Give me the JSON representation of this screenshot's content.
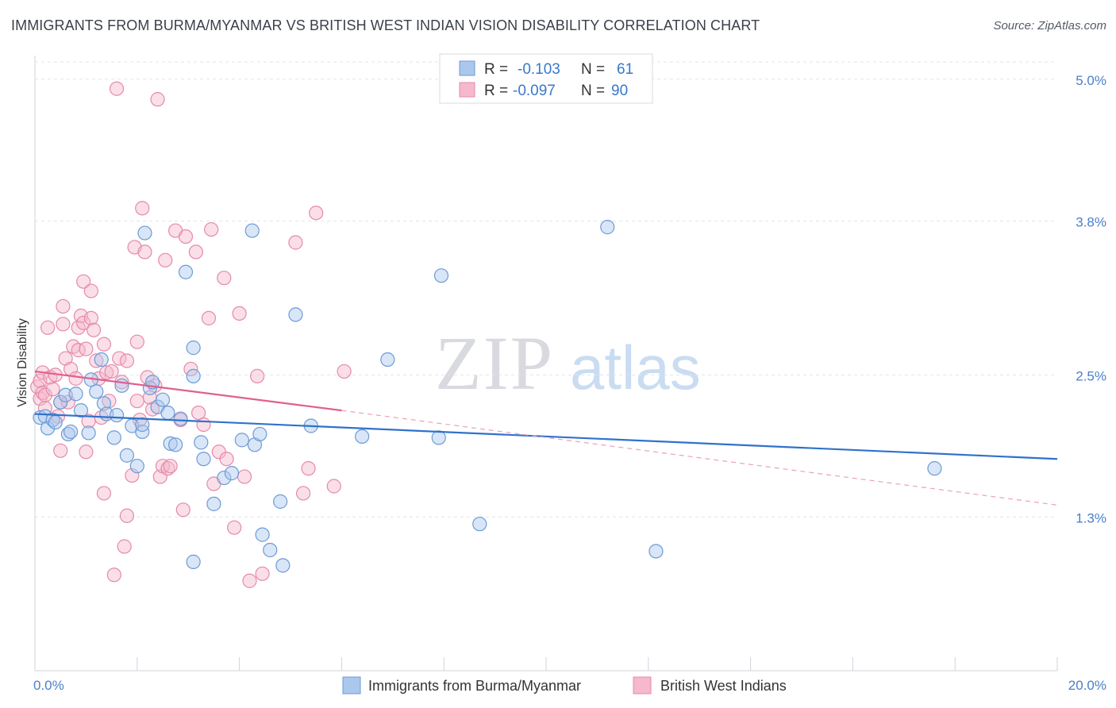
{
  "title": "IMMIGRANTS FROM BURMA/MYANMAR VS BRITISH WEST INDIAN VISION DISABILITY CORRELATION CHART",
  "source": "Source: ZipAtlas.com",
  "watermark": {
    "zip": "ZIP",
    "atlas": "atlas"
  },
  "colors": {
    "blue": "#4a86d4",
    "blue_fill": "#aac8ee",
    "pink": "#e86e98",
    "pink_fill": "#f5b8cc",
    "tick_text": "#4a7fc8"
  },
  "legend": {
    "rows": [
      {
        "r_label": "R = ",
        "r_value": "-0.103",
        "n_label": "N = ",
        "n_value": "61"
      },
      {
        "r_label": "R = ",
        "r_value": "-0.097",
        "n_label": "N = ",
        "n_value": "90"
      }
    ]
  },
  "chart_data": {
    "type": "scatter",
    "ylabel": "Vision Disability",
    "xlabel": "",
    "xlim": [
      0,
      20
    ],
    "ylim": [
      0,
      5.2
    ],
    "x_tick_labels": [
      "0.0%",
      "20.0%"
    ],
    "y_ticks": [
      {
        "value": 1.3,
        "label": "1.3%"
      },
      {
        "value": 2.5,
        "label": "2.5%"
      },
      {
        "value": 3.8,
        "label": "3.8%"
      },
      {
        "value": 5.0,
        "label": "5.0%"
      }
    ],
    "grid": "horizontal dashed",
    "legend_position": "top-center",
    "series": [
      {
        "name": "Immigrants from Burma/Myanmar",
        "color": "blue",
        "trend": {
          "x": [
            0,
            20
          ],
          "y": [
            2.17,
            1.79
          ]
        },
        "points": [
          [
            0.1,
            2.14
          ],
          [
            0.2,
            2.15
          ],
          [
            0.25,
            2.05
          ],
          [
            0.35,
            2.12
          ],
          [
            0.4,
            2.1
          ],
          [
            0.5,
            2.27
          ],
          [
            0.6,
            2.33
          ],
          [
            0.65,
            2.0
          ],
          [
            0.7,
            2.02
          ],
          [
            0.8,
            2.34
          ],
          [
            0.9,
            2.2
          ],
          [
            1.05,
            2.01
          ],
          [
            1.1,
            2.46
          ],
          [
            1.2,
            2.36
          ],
          [
            1.3,
            2.63
          ],
          [
            1.35,
            2.26
          ],
          [
            1.4,
            2.17
          ],
          [
            1.55,
            1.97
          ],
          [
            1.6,
            2.16
          ],
          [
            1.7,
            2.41
          ],
          [
            1.8,
            1.82
          ],
          [
            1.9,
            2.07
          ],
          [
            2.0,
            1.73
          ],
          [
            2.1,
            2.02
          ],
          [
            2.1,
            2.08
          ],
          [
            2.15,
            3.7
          ],
          [
            2.25,
            2.39
          ],
          [
            2.3,
            2.44
          ],
          [
            2.4,
            2.23
          ],
          [
            2.5,
            2.29
          ],
          [
            2.6,
            2.18
          ],
          [
            2.65,
            1.92
          ],
          [
            2.75,
            1.91
          ],
          [
            2.85,
            2.13
          ],
          [
            2.95,
            3.37
          ],
          [
            3.1,
            2.73
          ],
          [
            3.1,
            2.49
          ],
          [
            3.25,
            1.93
          ],
          [
            3.3,
            1.79
          ],
          [
            3.1,
            0.92
          ],
          [
            3.5,
            1.41
          ],
          [
            3.7,
            1.63
          ],
          [
            3.85,
            1.67
          ],
          [
            4.05,
            1.95
          ],
          [
            4.25,
            3.72
          ],
          [
            4.3,
            1.91
          ],
          [
            4.4,
            2.0
          ],
          [
            4.45,
            1.15
          ],
          [
            4.6,
            1.02
          ],
          [
            4.8,
            1.43
          ],
          [
            4.85,
            0.89
          ],
          [
            5.1,
            3.01
          ],
          [
            5.4,
            2.07
          ],
          [
            6.4,
            1.98
          ],
          [
            6.9,
            2.63
          ],
          [
            7.9,
            1.97
          ],
          [
            7.95,
            3.34
          ],
          [
            8.7,
            1.24
          ],
          [
            11.2,
            3.75
          ],
          [
            12.15,
            1.01
          ],
          [
            17.6,
            1.71
          ]
        ]
      },
      {
        "name": "British West Indians",
        "color": "pink",
        "trend": {
          "x": [
            0,
            6
          ],
          "y": [
            2.53,
            2.2
          ]
        },
        "trend_extension": {
          "x": [
            6,
            20
          ],
          "y": [
            2.2,
            1.4
          ]
        },
        "points": [
          [
            0.05,
            2.4
          ],
          [
            0.1,
            2.45
          ],
          [
            0.1,
            2.3
          ],
          [
            0.15,
            2.35
          ],
          [
            0.15,
            2.52
          ],
          [
            0.2,
            2.22
          ],
          [
            0.2,
            2.33
          ],
          [
            0.25,
            2.9
          ],
          [
            0.3,
            2.48
          ],
          [
            0.35,
            2.38
          ],
          [
            0.4,
            2.5
          ],
          [
            0.45,
            2.15
          ],
          [
            0.5,
            1.86
          ],
          [
            0.5,
            2.27
          ],
          [
            0.55,
            3.08
          ],
          [
            0.55,
            2.93
          ],
          [
            0.6,
            2.64
          ],
          [
            0.65,
            2.27
          ],
          [
            0.7,
            2.55
          ],
          [
            0.75,
            2.74
          ],
          [
            0.8,
            2.47
          ],
          [
            0.85,
            2.9
          ],
          [
            0.85,
            2.71
          ],
          [
            0.9,
            3.0
          ],
          [
            0.95,
            2.94
          ],
          [
            0.95,
            3.29
          ],
          [
            1.0,
            2.72
          ],
          [
            1.0,
            1.85
          ],
          [
            1.05,
            2.11
          ],
          [
            1.1,
            2.98
          ],
          [
            1.1,
            3.21
          ],
          [
            1.15,
            2.88
          ],
          [
            1.2,
            2.62
          ],
          [
            1.25,
            2.47
          ],
          [
            1.3,
            2.14
          ],
          [
            1.35,
            2.76
          ],
          [
            1.35,
            1.5
          ],
          [
            1.4,
            2.52
          ],
          [
            1.45,
            2.28
          ],
          [
            1.5,
            2.53
          ],
          [
            1.55,
            0.81
          ],
          [
            1.6,
            4.92
          ],
          [
            1.65,
            2.64
          ],
          [
            1.7,
            2.44
          ],
          [
            1.75,
            1.05
          ],
          [
            1.8,
            2.62
          ],
          [
            1.8,
            1.31
          ],
          [
            1.9,
            1.65
          ],
          [
            1.95,
            3.58
          ],
          [
            2.0,
            2.78
          ],
          [
            2.0,
            2.28
          ],
          [
            2.05,
            2.12
          ],
          [
            2.1,
            3.91
          ],
          [
            2.15,
            3.54
          ],
          [
            2.2,
            2.48
          ],
          [
            2.25,
            2.31
          ],
          [
            2.3,
            2.21
          ],
          [
            2.35,
            2.41
          ],
          [
            2.4,
            4.83
          ],
          [
            2.45,
            1.64
          ],
          [
            2.5,
            1.73
          ],
          [
            2.55,
            3.47
          ],
          [
            2.6,
            1.71
          ],
          [
            2.65,
            1.73
          ],
          [
            2.75,
            3.72
          ],
          [
            2.85,
            2.12
          ],
          [
            2.9,
            1.36
          ],
          [
            2.95,
            3.67
          ],
          [
            3.05,
            2.55
          ],
          [
            3.15,
            3.54
          ],
          [
            3.2,
            2.18
          ],
          [
            3.3,
            2.08
          ],
          [
            3.4,
            2.98
          ],
          [
            3.45,
            3.73
          ],
          [
            3.5,
            1.58
          ],
          [
            3.6,
            1.85
          ],
          [
            3.7,
            3.32
          ],
          [
            3.75,
            1.79
          ],
          [
            3.9,
            1.21
          ],
          [
            4.0,
            3.02
          ],
          [
            4.1,
            1.64
          ],
          [
            4.2,
            0.76
          ],
          [
            4.35,
            2.49
          ],
          [
            4.45,
            0.82
          ],
          [
            5.1,
            3.62
          ],
          [
            5.25,
            1.5
          ],
          [
            5.35,
            1.71
          ],
          [
            5.5,
            3.87
          ],
          [
            5.85,
            1.56
          ],
          [
            6.05,
            2.53
          ]
        ]
      }
    ]
  }
}
